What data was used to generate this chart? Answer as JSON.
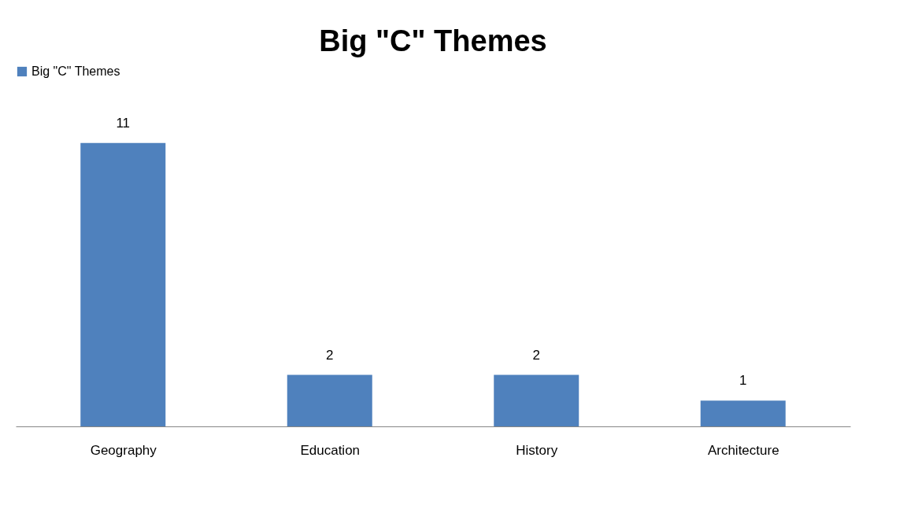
{
  "chart_data": {
    "type": "bar",
    "title": "Big \"C\" Themes",
    "categories": [
      "Geography",
      "Education",
      "History",
      "Architecture"
    ],
    "series": [
      {
        "name": "Big \"C\" Themes",
        "color": "#4f81bd",
        "values": [
          11,
          2,
          2,
          1
        ]
      }
    ],
    "data_labels": true,
    "legend": "top",
    "grid": false,
    "tick_labels": "x"
  }
}
